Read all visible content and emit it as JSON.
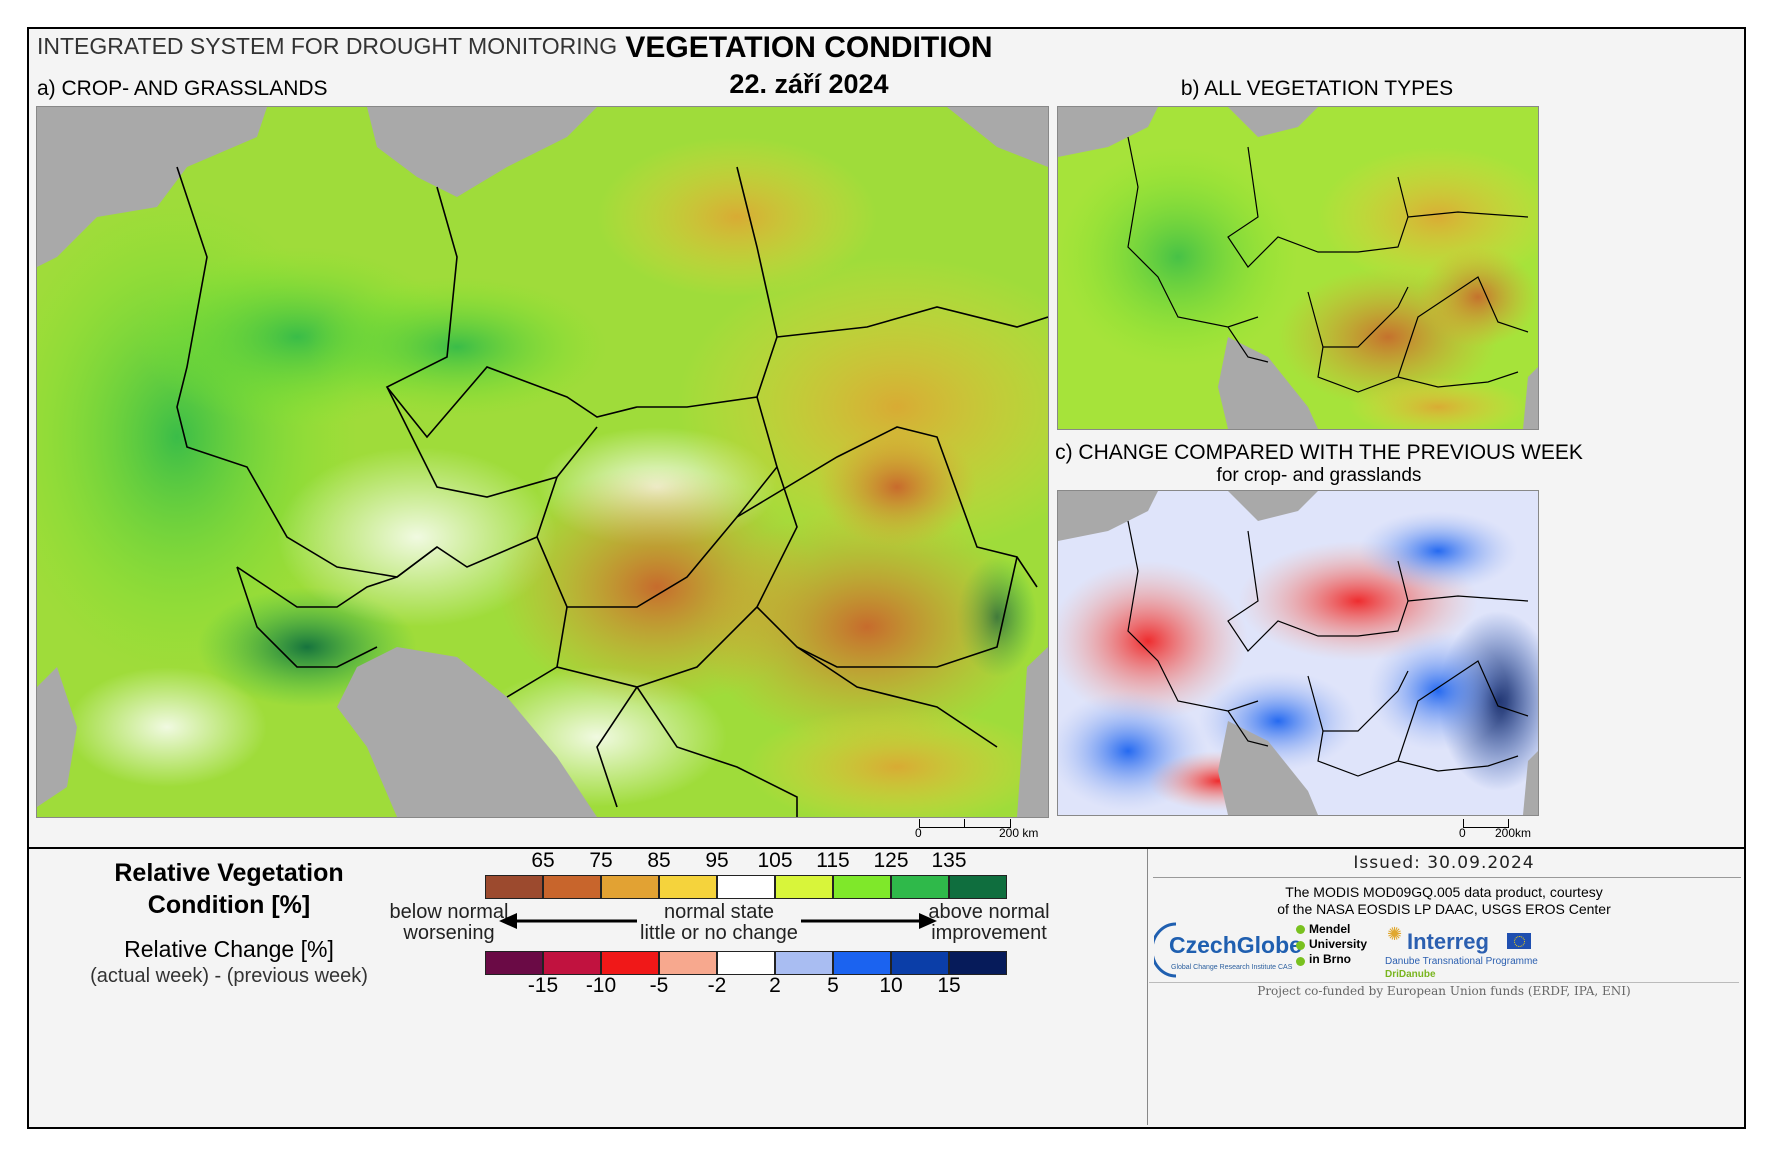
{
  "header": {
    "system": "INTEGRATED SYSTEM FOR DROUGHT MONITORING",
    "title": "VEGETATION CONDITION",
    "date": "22. září 2024"
  },
  "panels": {
    "a": "a) CROP- AND GRASSLANDS",
    "b": "b) ALL VEGETATION TYPES",
    "c_line1": "c) CHANGE COMPARED WITH THE PREVIOUS WEEK",
    "c_line2": "for crop- and grasslands"
  },
  "scalebars": {
    "main_zero": "0",
    "main_km": "200 km",
    "small_zero": "0",
    "small_km": "200km"
  },
  "legend": {
    "rvc_title_1": "Relative Vegetation",
    "rvc_title_2": "Condition [%]",
    "rc_title": "Relative Change [%]",
    "rc_sub": "(actual week) - (previous week)",
    "left_1": "below normal",
    "left_2": "worsening",
    "mid_1": "normal state",
    "mid_2": "little or no change",
    "right_1": "above normal",
    "right_2": "improvement",
    "rvc_ticks": [
      "65",
      "75",
      "85",
      "95",
      "105",
      "115",
      "125",
      "135"
    ],
    "rc_ticks": [
      "-15",
      "-10",
      "-5",
      "-2",
      "2",
      "5",
      "10",
      "15"
    ],
    "rvc_colors": [
      "#9c4a2e",
      "#c8652c",
      "#e2a233",
      "#f5d33c",
      "#ffffff",
      "#d8f53a",
      "#7fe82a",
      "#2fb94a",
      "#0f6e3e"
    ],
    "rc_colors": [
      "#6a0a45",
      "#c1123f",
      "#f01818",
      "#f7a88e",
      "#ffffff",
      "#a9bdf2",
      "#1b63f0",
      "#0b3ea8",
      "#061b5a"
    ]
  },
  "credits": {
    "issued": "Issued: 30.09.2024",
    "modis_1": "The MODIS MOD09GQ.005 data product, courtesy",
    "modis_2": "of the NASA EOSDIS LP DAAC, USGS EROS Center",
    "czechglobe": "CzechGlobe",
    "czechglobe_sub": "Global Change Research Institute CAS",
    "mendel_1": "Mendel",
    "mendel_2": "University",
    "mendel_3": "in Brno",
    "interreg": "Interreg",
    "interreg_sub": "Danube Transnational Programme",
    "dridanube": "DriDanube",
    "cofunded": "Project co-funded by European Union funds (ERDF, IPA, ENI)"
  }
}
